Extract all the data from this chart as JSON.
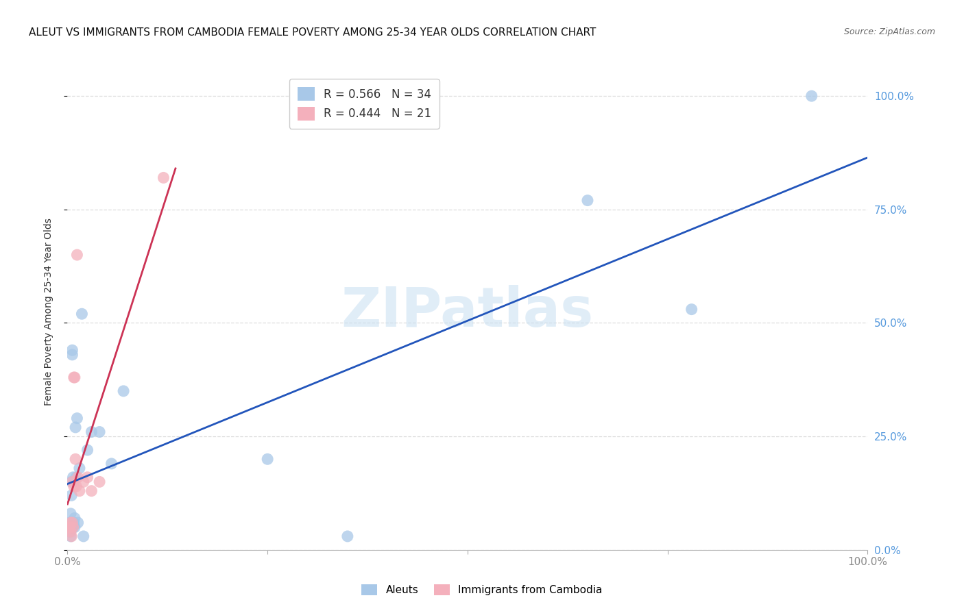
{
  "title": "ALEUT VS IMMIGRANTS FROM CAMBODIA FEMALE POVERTY AMONG 25-34 YEAR OLDS CORRELATION CHART",
  "source": "Source: ZipAtlas.com",
  "ylabel": "Female Poverty Among 25-34 Year Olds",
  "ytick_labels": [
    "0.0%",
    "25.0%",
    "50.0%",
    "75.0%",
    "100.0%"
  ],
  "ytick_values": [
    0.0,
    0.25,
    0.5,
    0.75,
    1.0
  ],
  "xtick_labels": [
    "0.0%",
    "25.0%",
    "50.0%",
    "75.0%",
    "100.0%"
  ],
  "xtick_values": [
    0.0,
    0.25,
    0.5,
    0.75,
    1.0
  ],
  "watermark_text": "ZIPatlas",
  "legend_entry1_r": "R = 0.566",
  "legend_entry1_n": "N = 34",
  "legend_entry2_r": "R = 0.444",
  "legend_entry2_n": "N = 21",
  "legend_color1": "#a8c8e8",
  "legend_color2": "#f4b0bc",
  "aleuts_color": "#a8c8e8",
  "cambodia_color": "#f4b0bc",
  "aleuts_line_color": "#2255bb",
  "cambodia_line_color": "#cc3355",
  "aleuts_x": [
    0.002,
    0.003,
    0.003,
    0.004,
    0.004,
    0.005,
    0.005,
    0.005,
    0.006,
    0.006,
    0.007,
    0.007,
    0.007,
    0.008,
    0.008,
    0.009,
    0.009,
    0.01,
    0.011,
    0.012,
    0.013,
    0.015,
    0.018,
    0.02,
    0.025,
    0.03,
    0.04,
    0.055,
    0.07,
    0.25,
    0.35,
    0.65,
    0.78,
    0.93
  ],
  "aleuts_y": [
    0.05,
    0.06,
    0.04,
    0.08,
    0.03,
    0.12,
    0.15,
    0.05,
    0.44,
    0.43,
    0.06,
    0.16,
    0.05,
    0.15,
    0.06,
    0.05,
    0.07,
    0.27,
    0.16,
    0.29,
    0.06,
    0.18,
    0.52,
    0.03,
    0.22,
    0.26,
    0.26,
    0.19,
    0.35,
    0.2,
    0.03,
    0.77,
    0.53,
    1.0
  ],
  "cambodia_x": [
    0.002,
    0.003,
    0.004,
    0.004,
    0.005,
    0.006,
    0.006,
    0.007,
    0.008,
    0.008,
    0.009,
    0.01,
    0.011,
    0.012,
    0.013,
    0.015,
    0.02,
    0.025,
    0.03,
    0.04,
    0.12
  ],
  "cambodia_y": [
    0.05,
    0.05,
    0.06,
    0.04,
    0.03,
    0.06,
    0.15,
    0.05,
    0.14,
    0.38,
    0.38,
    0.2,
    0.14,
    0.65,
    0.16,
    0.13,
    0.15,
    0.16,
    0.13,
    0.15,
    0.82
  ],
  "background_color": "#ffffff",
  "grid_color": "#dddddd",
  "title_fontsize": 11,
  "right_tick_color": "#5599dd",
  "bottom_tick_color": "#888888",
  "xlim": [
    0.0,
    1.0
  ],
  "ylim": [
    0.0,
    1.05
  ]
}
